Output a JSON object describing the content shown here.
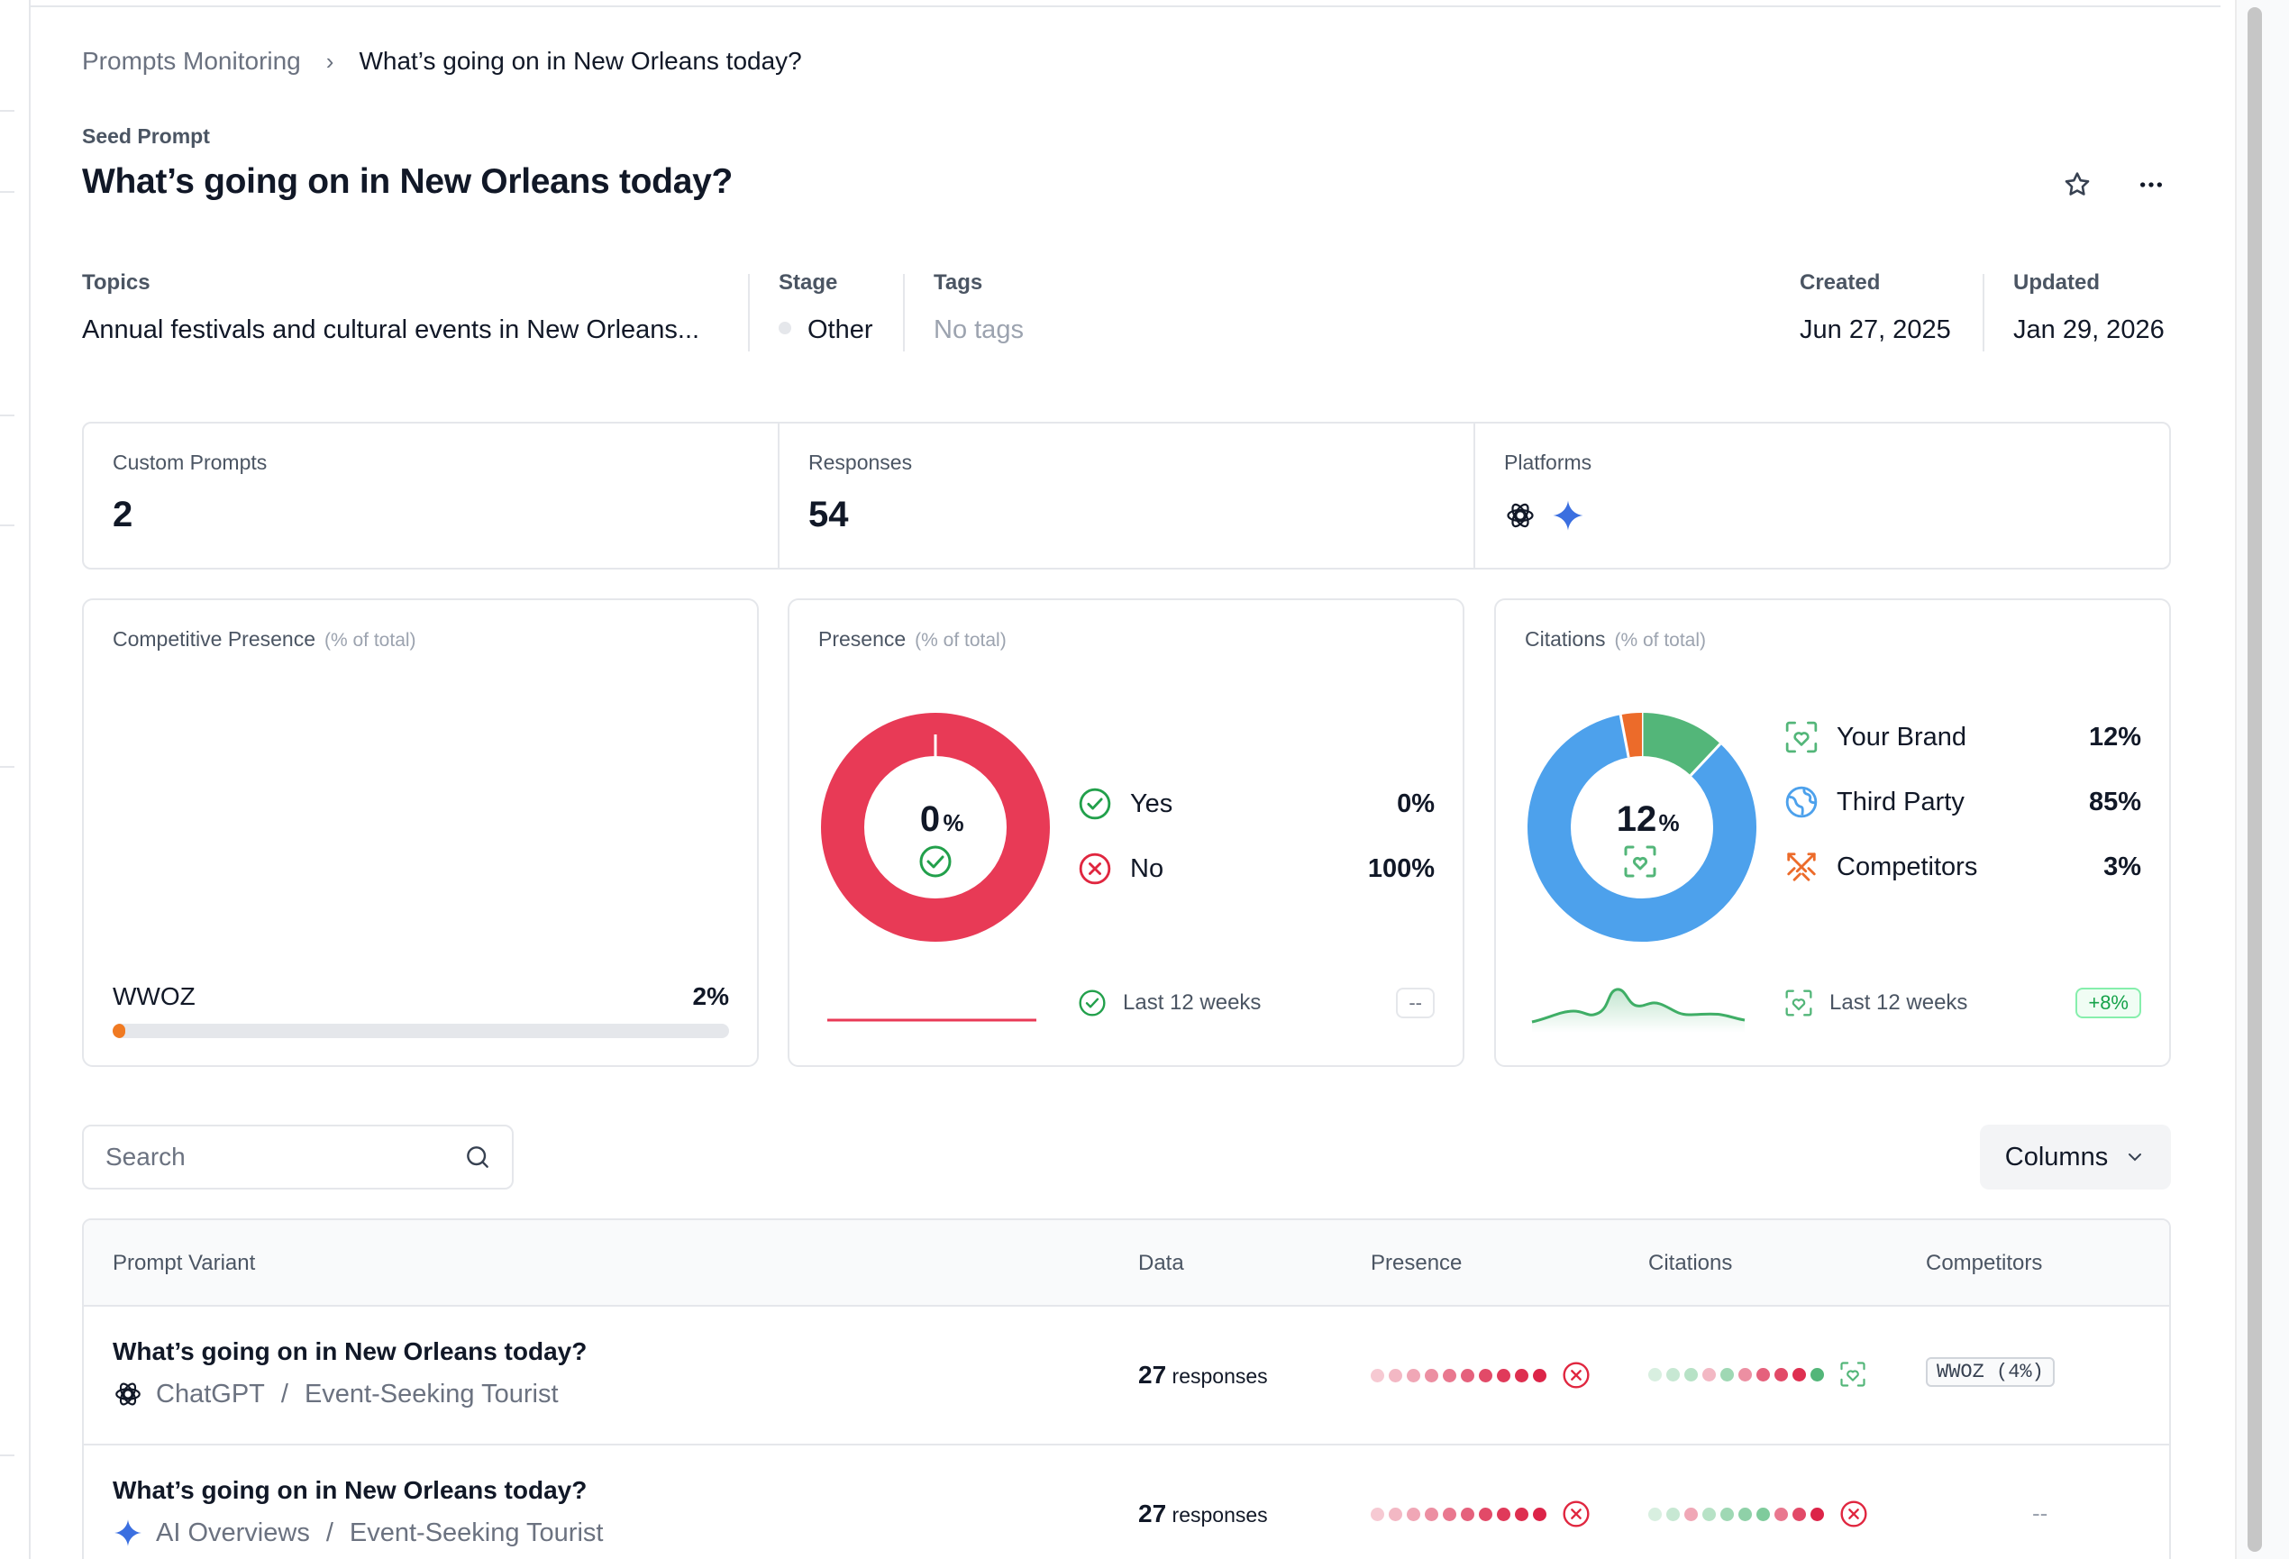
{
  "breadcrumb": {
    "parent": "Prompts Monitoring",
    "separator": "›",
    "current": "What’s going on in New Orleans today?"
  },
  "seed": {
    "label": "Seed Prompt",
    "title": "What’s going on in New Orleans today?"
  },
  "meta": {
    "topics": {
      "label": "Topics",
      "value": "Annual festivals and cultural events in New Orleans..."
    },
    "stage": {
      "label": "Stage",
      "value": "Other"
    },
    "tags": {
      "label": "Tags",
      "value": "No tags"
    },
    "created": {
      "label": "Created",
      "value": "Jun 27, 2025"
    },
    "updated": {
      "label": "Updated",
      "value": "Jan 29, 2026"
    }
  },
  "stats": {
    "custom_prompts": {
      "label": "Custom Prompts",
      "value": "2"
    },
    "responses": {
      "label": "Responses",
      "value": "54"
    },
    "platforms": {
      "label": "Platforms",
      "icons": [
        "chatgpt-icon",
        "gemini-sparkle-icon"
      ]
    }
  },
  "competitive": {
    "title": "Competitive Presence",
    "subtitle": "(% of total)",
    "item": {
      "name": "WWOZ",
      "pct": "2%",
      "fraction": 0.02
    }
  },
  "presence": {
    "title": "Presence",
    "subtitle": "(% of total)",
    "center_value": "0",
    "center_unit": "%",
    "yes": {
      "label": "Yes",
      "pct": "0%"
    },
    "no": {
      "label": "No",
      "pct": "100%"
    },
    "footer": "Last 12 weeks",
    "delta": "--",
    "colors": {
      "yes": "#22a04b",
      "no": "#e83a56"
    }
  },
  "citations": {
    "title": "Citations",
    "subtitle": "(% of total)",
    "center_value": "12",
    "center_unit": "%",
    "items": [
      {
        "label": "Your Brand",
        "pct": "12%",
        "value": 12,
        "color": "#53b679"
      },
      {
        "label": "Third Party",
        "pct": "85%",
        "value": 85,
        "color": "#4da1ec"
      },
      {
        "label": "Competitors",
        "pct": "3%",
        "value": 3,
        "color": "#ec6b2a"
      }
    ],
    "footer": "Last 12 weeks",
    "delta": "+8%"
  },
  "toolbar": {
    "search_placeholder": "Search",
    "columns_label": "Columns"
  },
  "table": {
    "headers": {
      "variant": "Prompt Variant",
      "data": "Data",
      "presence": "Presence",
      "citations": "Citations",
      "competitors": "Competitors"
    },
    "rows": [
      {
        "question": "What’s going on in New Orleans today?",
        "platform": "ChatGPT",
        "platform_icon": "chatgpt-icon",
        "persona": "Event-Seeking Tourist",
        "count": "27",
        "count_unit": "responses",
        "presence_dots": [
          "#f6c9d2",
          "#f3b8c4",
          "#f0a7b6",
          "#ec8fa2",
          "#e9788f",
          "#e5617c",
          "#e24a68",
          "#e03a5a",
          "#de2f50",
          "#dc2448"
        ],
        "presence_status": "no",
        "citation_dots": [
          "#d8efe0",
          "#c7e8d3",
          "#b7e2c6",
          "#f3b8c4",
          "#9fd8b4",
          "#ec8fa2",
          "#e5617c",
          "#e24a68",
          "#de2f50",
          "#53b679"
        ],
        "citation_status": "brand",
        "competitor": "WWOZ (4%)"
      },
      {
        "question": "What’s going on in New Orleans today?",
        "platform": "AI Overviews",
        "platform_icon": "gemini-sparkle-icon",
        "persona": "Event-Seeking Tourist",
        "count": "27",
        "count_unit": "responses",
        "presence_dots": [
          "#f6c9d2",
          "#f3b8c4",
          "#f0a7b6",
          "#ec8fa2",
          "#e9788f",
          "#e5617c",
          "#e24a68",
          "#e03a5a",
          "#de2f50",
          "#dc2448"
        ],
        "presence_status": "no",
        "citation_dots": [
          "#d8efe0",
          "#c7e8d3",
          "#f0a7b6",
          "#b7e2c6",
          "#9fd8b4",
          "#8fd1a8",
          "#7fcb9c",
          "#e9788f",
          "#e24a68",
          "#dc2448"
        ],
        "citation_status": "no",
        "competitor": "--"
      }
    ]
  }
}
